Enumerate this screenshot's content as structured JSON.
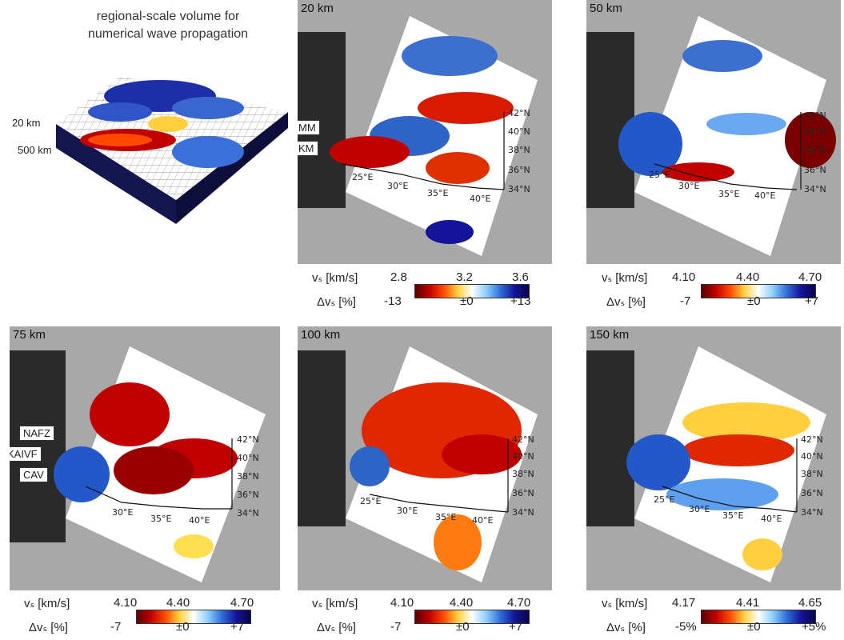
{
  "headline": {
    "line1": "regional-scale volume for",
    "line2": "numerical wave propagation"
  },
  "block": {
    "top_label": "20 km",
    "bottom_label": "500 km"
  },
  "lon_labels": [
    "25°E",
    "30°E",
    "35°E",
    "40°E"
  ],
  "lat_labels": [
    "42°N",
    "40°N",
    "38°N",
    "36°N",
    "34°N"
  ],
  "vs_label": "vₛ [km/s]",
  "dvs_label": "Δvₛ [%]",
  "panels": [
    {
      "depth": "20 km",
      "vs": [
        "2.8",
        "3.2",
        "3.6"
      ],
      "dvs": [
        "-13",
        "±0",
        "+13"
      ],
      "tags": [
        "MM",
        "KM"
      ]
    },
    {
      "depth": "50 km",
      "vs": [
        "4.10",
        "4.40",
        "4.70"
      ],
      "dvs": [
        "-7",
        "±0",
        "+7"
      ]
    },
    {
      "depth": "75 km",
      "vs": [
        "4.10",
        "4.40",
        "4.70"
      ],
      "dvs": [
        "-7",
        "±0",
        "+7"
      ],
      "tags": [
        "NAFZ",
        "KAIVF",
        "CAV"
      ]
    },
    {
      "depth": "100 km",
      "vs": [
        "4.10",
        "4.40",
        "4.70"
      ],
      "dvs": [
        "-7",
        "±0",
        "+7"
      ]
    },
    {
      "depth": "150 km",
      "vs": [
        "4.17",
        "4.41",
        "4.65"
      ],
      "dvs": [
        "-5%",
        "±0",
        "+5%"
      ]
    }
  ],
  "colors": {
    "slow": "#c10000",
    "fast": "#14149a",
    "neutral": "#ffffff"
  }
}
